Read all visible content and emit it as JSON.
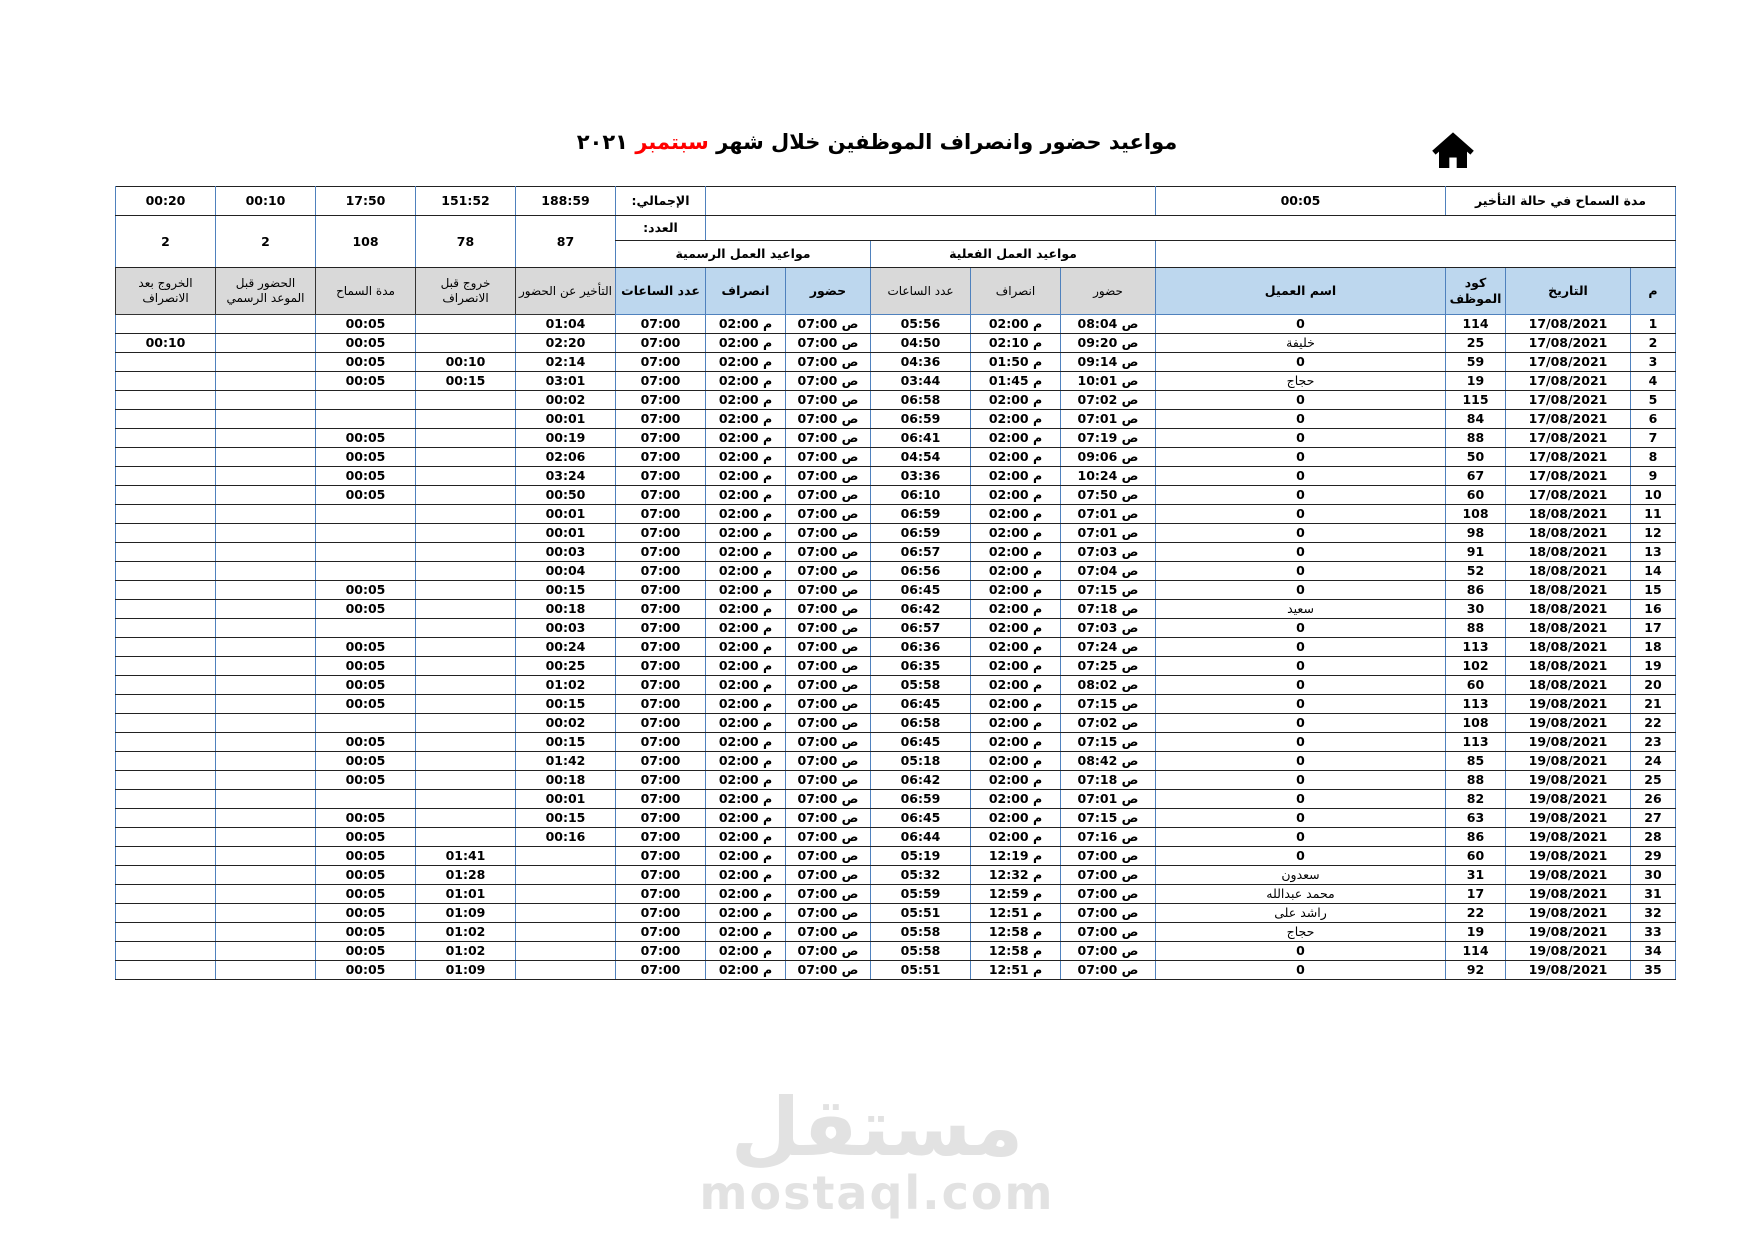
{
  "page": {
    "title_prefix": "مواعيد حضور وانصراف الموظفين خلال شهر ",
    "title_month": "سبتمبر",
    "title_year": " ٢٠٢١"
  },
  "grace_box": {
    "value": "00:05",
    "label": "مدة السماح في حالة التأخير"
  },
  "summary": {
    "total_label": "الإجمالي:",
    "count_label": "العدد:",
    "totals": [
      "00:20",
      "00:10",
      "17:50",
      "151:52",
      "188:59"
    ],
    "counts": [
      "2",
      "2",
      "108",
      "78",
      "87"
    ]
  },
  "headers": {
    "group_official": "مواعيد العمل الرسمية",
    "group_actual": "مواعيد العمل الفعلية",
    "no": "م",
    "date": "التاريخ",
    "emp_code": "كود الموظف",
    "client_name": "اسم العميل",
    "attend": "حضور",
    "leave": "انصراف",
    "hours": "عدد الساعات",
    "late": "التأخير عن الحضور",
    "exit_before": "خروج قبل الانصراف",
    "grace": "مدة السماح",
    "attend_before": "الحضور قبل الموعد الرسمي",
    "exit_after": "الخروج بعد الانصراف"
  },
  "colors": {
    "red_highlight": "#F5827A",
    "orange_highlight": "#FAC090",
    "header_blue": "#BDD7EE",
    "header_gray": "#D9D9D9",
    "green": "#C4D79B",
    "border_blue": "#4F81BD",
    "title_red": "#FF0000"
  },
  "watermark": {
    "logo": "مستقل",
    "domain": "mostaql.com"
  },
  "table": {
    "rows": [
      {
        "no": "1",
        "date": "17/08/2021",
        "code": "114",
        "name": "0",
        "a_in": "08:04 ص",
        "a_out": "02:00 م",
        "a_hrs": "05:56",
        "o_in": "07:00 ص",
        "o_out": "02:00 م",
        "o_hrs": "07:00",
        "late": "01:04",
        "exit_b": "",
        "grace": "00:05",
        "att_b": "",
        "exit_a": ""
      },
      {
        "no": "2",
        "date": "17/08/2021",
        "code": "25",
        "name": "خليفة",
        "a_in": "09:20 ص",
        "a_out": "02:10 م",
        "a_hrs": "04:50",
        "o_in": "07:00 ص",
        "o_out": "02:00 م",
        "o_hrs": "07:00",
        "late": "02:20",
        "exit_b": "",
        "grace": "00:05",
        "att_b": "",
        "exit_a": "00:10"
      },
      {
        "no": "3",
        "date": "17/08/2021",
        "code": "59",
        "name": "0",
        "a_in": "09:14 ص",
        "a_out": "01:50 م",
        "a_hrs": "04:36",
        "o_in": "07:00 ص",
        "o_out": "02:00 م",
        "o_hrs": "07:00",
        "late": "02:14",
        "exit_b": "00:10",
        "grace": "00:05",
        "att_b": "",
        "exit_a": ""
      },
      {
        "no": "4",
        "date": "17/08/2021",
        "code": "19",
        "name": "حجاج",
        "a_in": "10:01 ص",
        "a_out": "01:45 م",
        "a_hrs": "03:44",
        "o_in": "07:00 ص",
        "o_out": "02:00 م",
        "o_hrs": "07:00",
        "late": "03:01",
        "exit_b": "00:15",
        "grace": "00:05",
        "att_b": "",
        "exit_a": ""
      },
      {
        "no": "5",
        "date": "17/08/2021",
        "code": "115",
        "name": "0",
        "a_in": "07:02 ص",
        "a_out": "02:00 م",
        "a_hrs": "06:58",
        "o_in": "07:00 ص",
        "o_out": "02:00 م",
        "o_hrs": "07:00",
        "late": "00:02",
        "exit_b": "",
        "grace": "",
        "att_b": "",
        "exit_a": ""
      },
      {
        "no": "6",
        "date": "17/08/2021",
        "code": "84",
        "name": "0",
        "a_in": "07:01 ص",
        "a_out": "02:00 م",
        "a_hrs": "06:59",
        "o_in": "07:00 ص",
        "o_out": "02:00 م",
        "o_hrs": "07:00",
        "late": "00:01",
        "exit_b": "",
        "grace": "",
        "att_b": "",
        "exit_a": ""
      },
      {
        "no": "7",
        "date": "17/08/2021",
        "code": "88",
        "name": "0",
        "a_in": "07:19 ص",
        "a_out": "02:00 م",
        "a_hrs": "06:41",
        "o_in": "07:00 ص",
        "o_out": "02:00 م",
        "o_hrs": "07:00",
        "late": "00:19",
        "exit_b": "",
        "grace": "00:05",
        "att_b": "",
        "exit_a": ""
      },
      {
        "no": "8",
        "date": "17/08/2021",
        "code": "50",
        "name": "0",
        "a_in": "09:06 ص",
        "a_out": "02:00 م",
        "a_hrs": "04:54",
        "o_in": "07:00 ص",
        "o_out": "02:00 م",
        "o_hrs": "07:00",
        "late": "02:06",
        "exit_b": "",
        "grace": "00:05",
        "att_b": "",
        "exit_a": ""
      },
      {
        "no": "9",
        "date": "17/08/2021",
        "code": "67",
        "name": "0",
        "a_in": "10:24 ص",
        "a_out": "02:00 م",
        "a_hrs": "03:36",
        "o_in": "07:00 ص",
        "o_out": "02:00 م",
        "o_hrs": "07:00",
        "late": "03:24",
        "exit_b": "",
        "grace": "00:05",
        "att_b": "",
        "exit_a": ""
      },
      {
        "no": "10",
        "date": "17/08/2021",
        "code": "60",
        "name": "0",
        "a_in": "07:50 ص",
        "a_out": "02:00 م",
        "a_hrs": "06:10",
        "o_in": "07:00 ص",
        "o_out": "02:00 م",
        "o_hrs": "07:00",
        "late": "00:50",
        "exit_b": "",
        "grace": "00:05",
        "att_b": "",
        "exit_a": ""
      },
      {
        "no": "11",
        "date": "18/08/2021",
        "code": "108",
        "name": "0",
        "a_in": "07:01 ص",
        "a_out": "02:00 م",
        "a_hrs": "06:59",
        "o_in": "07:00 ص",
        "o_out": "02:00 م",
        "o_hrs": "07:00",
        "late": "00:01",
        "exit_b": "",
        "grace": "",
        "att_b": "",
        "exit_a": ""
      },
      {
        "no": "12",
        "date": "18/08/2021",
        "code": "98",
        "name": "0",
        "a_in": "07:01 ص",
        "a_out": "02:00 م",
        "a_hrs": "06:59",
        "o_in": "07:00 ص",
        "o_out": "02:00 م",
        "o_hrs": "07:00",
        "late": "00:01",
        "exit_b": "",
        "grace": "",
        "att_b": "",
        "exit_a": ""
      },
      {
        "no": "13",
        "date": "18/08/2021",
        "code": "91",
        "name": "0",
        "a_in": "07:03 ص",
        "a_out": "02:00 م",
        "a_hrs": "06:57",
        "o_in": "07:00 ص",
        "o_out": "02:00 م",
        "o_hrs": "07:00",
        "late": "00:03",
        "exit_b": "",
        "grace": "",
        "att_b": "",
        "exit_a": ""
      },
      {
        "no": "14",
        "date": "18/08/2021",
        "code": "52",
        "name": "0",
        "a_in": "07:04 ص",
        "a_out": "02:00 م",
        "a_hrs": "06:56",
        "o_in": "07:00 ص",
        "o_out": "02:00 م",
        "o_hrs": "07:00",
        "late": "00:04",
        "exit_b": "",
        "grace": "",
        "att_b": "",
        "exit_a": ""
      },
      {
        "no": "15",
        "date": "18/08/2021",
        "code": "86",
        "name": "0",
        "a_in": "07:15 ص",
        "a_out": "02:00 م",
        "a_hrs": "06:45",
        "o_in": "07:00 ص",
        "o_out": "02:00 م",
        "o_hrs": "07:00",
        "late": "00:15",
        "exit_b": "",
        "grace": "00:05",
        "att_b": "",
        "exit_a": ""
      },
      {
        "no": "16",
        "date": "18/08/2021",
        "code": "30",
        "name": "سعيد",
        "a_in": "07:18 ص",
        "a_out": "02:00 م",
        "a_hrs": "06:42",
        "o_in": "07:00 ص",
        "o_out": "02:00 م",
        "o_hrs": "07:00",
        "late": "00:18",
        "exit_b": "",
        "grace": "00:05",
        "att_b": "",
        "exit_a": ""
      },
      {
        "no": "17",
        "date": "18/08/2021",
        "code": "88",
        "name": "0",
        "a_in": "07:03 ص",
        "a_out": "02:00 م",
        "a_hrs": "06:57",
        "o_in": "07:00 ص",
        "o_out": "02:00 م",
        "o_hrs": "07:00",
        "late": "00:03",
        "exit_b": "",
        "grace": "",
        "att_b": "",
        "exit_a": ""
      },
      {
        "no": "18",
        "date": "18/08/2021",
        "code": "113",
        "name": "0",
        "a_in": "07:24 ص",
        "a_out": "02:00 م",
        "a_hrs": "06:36",
        "o_in": "07:00 ص",
        "o_out": "02:00 م",
        "o_hrs": "07:00",
        "late": "00:24",
        "exit_b": "",
        "grace": "00:05",
        "att_b": "",
        "exit_a": ""
      },
      {
        "no": "19",
        "date": "18/08/2021",
        "code": "102",
        "name": "0",
        "a_in": "07:25 ص",
        "a_out": "02:00 م",
        "a_hrs": "06:35",
        "o_in": "07:00 ص",
        "o_out": "02:00 م",
        "o_hrs": "07:00",
        "late": "00:25",
        "exit_b": "",
        "grace": "00:05",
        "att_b": "",
        "exit_a": ""
      },
      {
        "no": "20",
        "date": "18/08/2021",
        "code": "60",
        "name": "0",
        "a_in": "08:02 ص",
        "a_out": "02:00 م",
        "a_hrs": "05:58",
        "o_in": "07:00 ص",
        "o_out": "02:00 م",
        "o_hrs": "07:00",
        "late": "01:02",
        "exit_b": "",
        "grace": "00:05",
        "att_b": "",
        "exit_a": ""
      },
      {
        "no": "21",
        "date": "19/08/2021",
        "code": "113",
        "name": "0",
        "a_in": "07:15 ص",
        "a_out": "02:00 م",
        "a_hrs": "06:45",
        "o_in": "07:00 ص",
        "o_out": "02:00 م",
        "o_hrs": "07:00",
        "late": "00:15",
        "exit_b": "",
        "grace": "00:05",
        "att_b": "",
        "exit_a": ""
      },
      {
        "no": "22",
        "date": "19/08/2021",
        "code": "108",
        "name": "0",
        "a_in": "07:02 ص",
        "a_out": "02:00 م",
        "a_hrs": "06:58",
        "o_in": "07:00 ص",
        "o_out": "02:00 م",
        "o_hrs": "07:00",
        "late": "00:02",
        "exit_b": "",
        "grace": "",
        "att_b": "",
        "exit_a": ""
      },
      {
        "no": "23",
        "date": "19/08/2021",
        "code": "113",
        "name": "0",
        "a_in": "07:15 ص",
        "a_out": "02:00 م",
        "a_hrs": "06:45",
        "o_in": "07:00 ص",
        "o_out": "02:00 م",
        "o_hrs": "07:00",
        "late": "00:15",
        "exit_b": "",
        "grace": "00:05",
        "att_b": "",
        "exit_a": ""
      },
      {
        "no": "24",
        "date": "19/08/2021",
        "code": "85",
        "name": "0",
        "a_in": "08:42 ص",
        "a_out": "02:00 م",
        "a_hrs": "05:18",
        "o_in": "07:00 ص",
        "o_out": "02:00 م",
        "o_hrs": "07:00",
        "late": "01:42",
        "exit_b": "",
        "grace": "00:05",
        "att_b": "",
        "exit_a": ""
      },
      {
        "no": "25",
        "date": "19/08/2021",
        "code": "88",
        "name": "0",
        "a_in": "07:18 ص",
        "a_out": "02:00 م",
        "a_hrs": "06:42",
        "o_in": "07:00 ص",
        "o_out": "02:00 م",
        "o_hrs": "07:00",
        "late": "00:18",
        "exit_b": "",
        "grace": "00:05",
        "att_b": "",
        "exit_a": ""
      },
      {
        "no": "26",
        "date": "19/08/2021",
        "code": "82",
        "name": "0",
        "a_in": "07:01 ص",
        "a_out": "02:00 م",
        "a_hrs": "06:59",
        "o_in": "07:00 ص",
        "o_out": "02:00 م",
        "o_hrs": "07:00",
        "late": "00:01",
        "exit_b": "",
        "grace": "",
        "att_b": "",
        "exit_a": ""
      },
      {
        "no": "27",
        "date": "19/08/2021",
        "code": "63",
        "name": "0",
        "a_in": "07:15 ص",
        "a_out": "02:00 م",
        "a_hrs": "06:45",
        "o_in": "07:00 ص",
        "o_out": "02:00 م",
        "o_hrs": "07:00",
        "late": "00:15",
        "exit_b": "",
        "grace": "00:05",
        "att_b": "",
        "exit_a": ""
      },
      {
        "no": "28",
        "date": "19/08/2021",
        "code": "86",
        "name": "0",
        "a_in": "07:16 ص",
        "a_out": "02:00 م",
        "a_hrs": "06:44",
        "o_in": "07:00 ص",
        "o_out": "02:00 م",
        "o_hrs": "07:00",
        "late": "00:16",
        "exit_b": "",
        "grace": "00:05",
        "att_b": "",
        "exit_a": ""
      },
      {
        "no": "29",
        "date": "19/08/2021",
        "code": "60",
        "name": "0",
        "a_in": "07:00 ص",
        "a_out": "12:19 م",
        "a_hrs": "05:19",
        "o_in": "07:00 ص",
        "o_out": "02:00 م",
        "o_hrs": "07:00",
        "late": "",
        "exit_b": "01:41",
        "grace": "00:05",
        "att_b": "",
        "exit_a": ""
      },
      {
        "no": "30",
        "date": "19/08/2021",
        "code": "31",
        "name": "سعدون",
        "a_in": "07:00 ص",
        "a_out": "12:32 م",
        "a_hrs": "05:32",
        "o_in": "07:00 ص",
        "o_out": "02:00 م",
        "o_hrs": "07:00",
        "late": "",
        "exit_b": "01:28",
        "grace": "00:05",
        "att_b": "",
        "exit_a": ""
      },
      {
        "no": "31",
        "date": "19/08/2021",
        "code": "17",
        "name": "محمد عبدالله",
        "a_in": "07:00 ص",
        "a_out": "12:59 م",
        "a_hrs": "05:59",
        "o_in": "07:00 ص",
        "o_out": "02:00 م",
        "o_hrs": "07:00",
        "late": "",
        "exit_b": "01:01",
        "grace": "00:05",
        "att_b": "",
        "exit_a": ""
      },
      {
        "no": "32",
        "date": "19/08/2021",
        "code": "22",
        "name": "راشد على",
        "a_in": "07:00 ص",
        "a_out": "12:51 م",
        "a_hrs": "05:51",
        "o_in": "07:00 ص",
        "o_out": "02:00 م",
        "o_hrs": "07:00",
        "late": "",
        "exit_b": "01:09",
        "grace": "00:05",
        "att_b": "",
        "exit_a": ""
      },
      {
        "no": "33",
        "date": "19/08/2021",
        "code": "19",
        "name": "حجاج",
        "a_in": "07:00 ص",
        "a_out": "12:58 م",
        "a_hrs": "05:58",
        "o_in": "07:00 ص",
        "o_out": "02:00 م",
        "o_hrs": "07:00",
        "late": "",
        "exit_b": "01:02",
        "grace": "00:05",
        "att_b": "",
        "exit_a": ""
      },
      {
        "no": "34",
        "date": "19/08/2021",
        "code": "114",
        "name": "0",
        "a_in": "07:00 ص",
        "a_out": "12:58 م",
        "a_hrs": "05:58",
        "o_in": "07:00 ص",
        "o_out": "02:00 م",
        "o_hrs": "07:00",
        "late": "",
        "exit_b": "01:02",
        "grace": "00:05",
        "att_b": "",
        "exit_a": ""
      },
      {
        "no": "35",
        "date": "19/08/2021",
        "code": "92",
        "name": "0",
        "a_in": "07:00 ص",
        "a_out": "12:51 م",
        "a_hrs": "05:51",
        "o_in": "07:00 ص",
        "o_out": "02:00 م",
        "o_hrs": "07:00",
        "late": "",
        "exit_b": "01:09",
        "grace": "00:05",
        "att_b": "",
        "exit_a": ""
      }
    ]
  }
}
